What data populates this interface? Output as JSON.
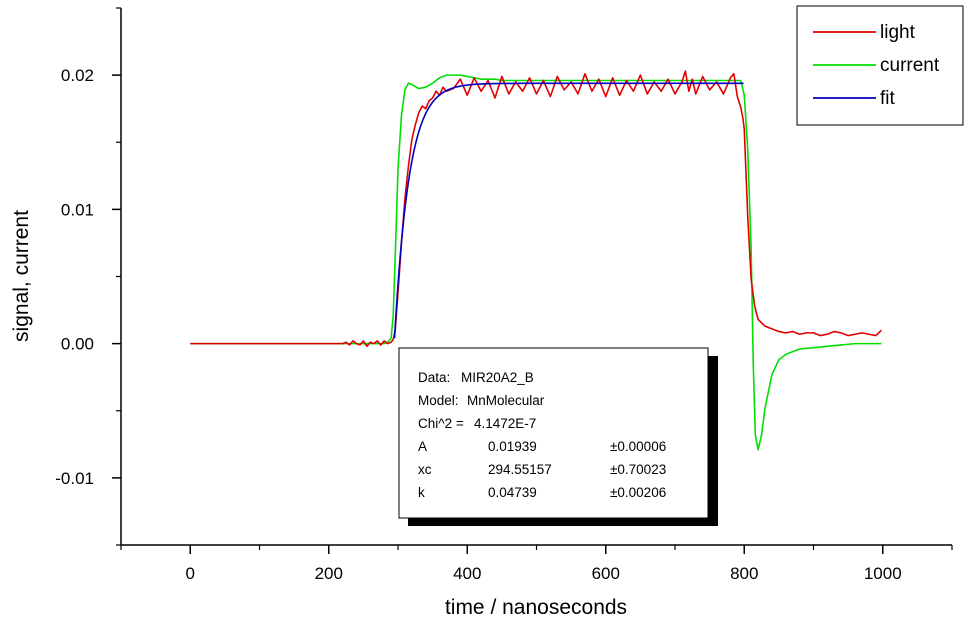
{
  "chart_data": {
    "type": "line",
    "title": "",
    "xlabel": "time / nanoseconds",
    "ylabel": "signal, current",
    "xlim": [
      -100,
      1100
    ],
    "ylim": [
      -0.015,
      0.025
    ],
    "xticks": [
      0,
      200,
      400,
      600,
      800,
      1000
    ],
    "xtick_labels": [
      "0",
      "200",
      "400",
      "600",
      "800",
      "1000"
    ],
    "yticks": [
      -0.01,
      0.0,
      0.01,
      0.02
    ],
    "ytick_labels": [
      "-0.01",
      "0.00",
      "0.01",
      "0.02"
    ],
    "grid": false,
    "legend_position": "top-right",
    "series": [
      {
        "name": "light",
        "color": "#e00000",
        "x": [
          0,
          100,
          200,
          220,
          225,
          230,
          235,
          240,
          245,
          250,
          255,
          260,
          265,
          270,
          275,
          280,
          285,
          290,
          293,
          296,
          300,
          305,
          310,
          315,
          320,
          325,
          330,
          335,
          340,
          345,
          350,
          355,
          360,
          365,
          370,
          380,
          390,
          400,
          410,
          420,
          430,
          440,
          450,
          460,
          470,
          480,
          490,
          500,
          510,
          520,
          530,
          540,
          550,
          560,
          570,
          580,
          590,
          600,
          610,
          620,
          630,
          640,
          650,
          660,
          670,
          680,
          690,
          700,
          710,
          715,
          720,
          725,
          730,
          740,
          750,
          760,
          770,
          780,
          785,
          790,
          795,
          798,
          800,
          805,
          810,
          815,
          820,
          830,
          840,
          850,
          860,
          870,
          880,
          890,
          900,
          910,
          920,
          930,
          940,
          950,
          960,
          970,
          980,
          990,
          998
        ],
        "y": [
          0,
          0,
          0,
          0,
          0.0001,
          -0.0001,
          0.0002,
          0,
          -0.0001,
          0.0002,
          -0.0002,
          0.0001,
          0,
          0.0002,
          -0.0001,
          0.0002,
          0,
          0.0001,
          0.0003,
          0.001,
          0.0038,
          0.0075,
          0.0108,
          0.0132,
          0.0152,
          0.0163,
          0.0172,
          0.0177,
          0.0175,
          0.0181,
          0.0183,
          0.0188,
          0.0185,
          0.0191,
          0.0188,
          0.019,
          0.0197,
          0.0185,
          0.0198,
          0.0188,
          0.0196,
          0.0183,
          0.0199,
          0.0186,
          0.0195,
          0.0188,
          0.0198,
          0.0186,
          0.0196,
          0.0184,
          0.0199,
          0.0189,
          0.0195,
          0.0186,
          0.0201,
          0.0188,
          0.0197,
          0.0184,
          0.0198,
          0.0185,
          0.0196,
          0.0188,
          0.02,
          0.0186,
          0.0195,
          0.0188,
          0.0197,
          0.0186,
          0.0195,
          0.0203,
          0.0188,
          0.0197,
          0.0186,
          0.0199,
          0.0189,
          0.0195,
          0.0186,
          0.0198,
          0.0201,
          0.0184,
          0.0176,
          0.0168,
          0.016,
          0.0095,
          0.0048,
          0.0028,
          0.0018,
          0.0013,
          0.0011,
          0.0009,
          0.0008,
          0.0009,
          0.0007,
          0.0008,
          0.0008,
          0.0006,
          0.0007,
          0.0009,
          0.0008,
          0.0006,
          0.0007,
          0.0008,
          0.0007,
          0.0006,
          0.001
        ]
      },
      {
        "name": "current",
        "color": "#00e000",
        "x": [
          0,
          100,
          200,
          280,
          285,
          290,
          293,
          296,
          300,
          305,
          310,
          315,
          320,
          330,
          340,
          350,
          360,
          370,
          380,
          390,
          400,
          420,
          440,
          450,
          460,
          480,
          500,
          600,
          700,
          780,
          790,
          795,
          800,
          805,
          810,
          813,
          816,
          820,
          825,
          830,
          840,
          850,
          860,
          870,
          880,
          900,
          920,
          940,
          960,
          980,
          998
        ],
        "y": [
          0,
          0,
          0,
          0,
          0.0001,
          0.0004,
          0.002,
          0.0065,
          0.013,
          0.017,
          0.0189,
          0.0194,
          0.0193,
          0.019,
          0.0191,
          0.0194,
          0.0198,
          0.02,
          0.02,
          0.02,
          0.0199,
          0.0197,
          0.0197,
          0.0196,
          0.0196,
          0.0196,
          0.0196,
          0.0196,
          0.0196,
          0.0196,
          0.0196,
          0.0196,
          0.0185,
          0.0145,
          0.007,
          -0.0015,
          -0.0068,
          -0.0079,
          -0.0068,
          -0.0048,
          -0.0023,
          -0.0012,
          -0.0008,
          -0.0006,
          -0.0004,
          -0.0003,
          -0.0002,
          -0.0001,
          0,
          0,
          0
        ]
      },
      {
        "name": "fit",
        "color": "#0000c0",
        "model": "MnMolecular",
        "A": 0.01939,
        "xc": 294.55157,
        "k": 0.04739,
        "x_range": [
          295,
          800
        ]
      }
    ],
    "fit_box": {
      "rows": [
        {
          "label": "Data:",
          "value": "MIR20A2_B",
          "error": ""
        },
        {
          "label": "Model:",
          "value": "MnMolecular",
          "error": ""
        },
        {
          "label": "Chi^2 =",
          "value": "4.1472E-7",
          "error": ""
        },
        {
          "label": "A",
          "value": "0.01939",
          "error": "±0.00006"
        },
        {
          "label": "xc",
          "value": "294.55157",
          "error": "±0.70023"
        },
        {
          "label": "k",
          "value": "0.04739",
          "error": "±0.00206"
        }
      ]
    }
  }
}
